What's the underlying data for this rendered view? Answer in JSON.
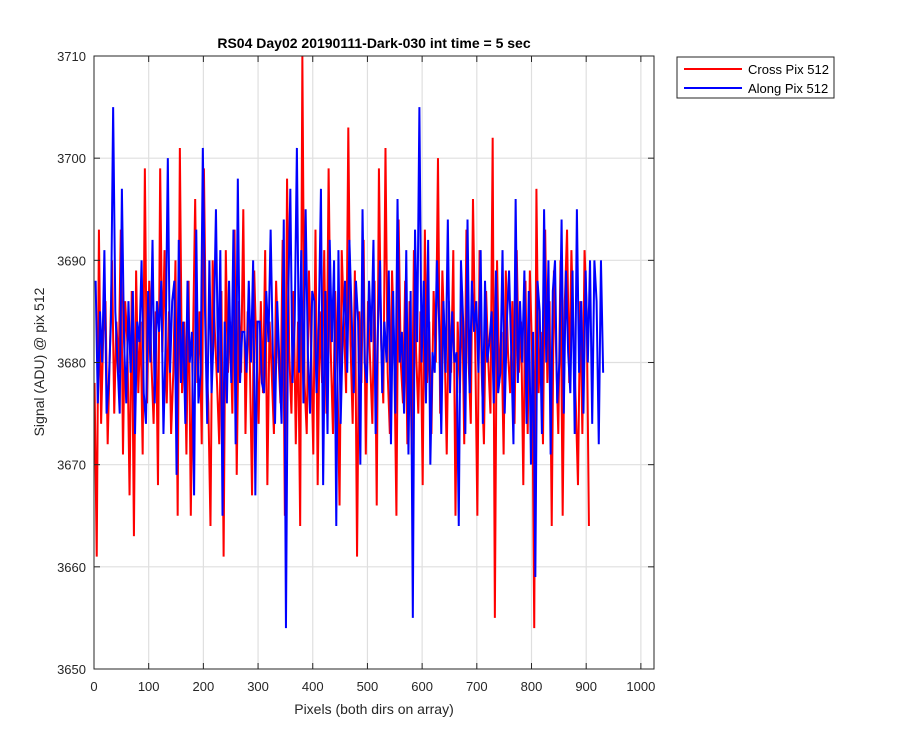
{
  "chart_data": {
    "type": "line",
    "title": "RS04 Day02 20190111-Dark-030 int time = 5 sec",
    "xlabel": "Pixels (both dirs on array)",
    "ylabel": "Signal (ADU) @ pix 512",
    "xlim": [
      0,
      1024
    ],
    "ylim": [
      3650,
      3710
    ],
    "xticks": [
      0,
      100,
      200,
      300,
      400,
      500,
      600,
      700,
      800,
      900,
      1000
    ],
    "yticks": [
      3650,
      3660,
      3670,
      3680,
      3690,
      3700,
      3710
    ],
    "grid": true,
    "legend_position": "top-right, outside plot",
    "series": [
      {
        "name": "Cross Pix 512",
        "color": "#ff0000",
        "x_start": 1,
        "x_step": 4,
        "values": [
          3678,
          3661,
          3693,
          3674,
          3683,
          3686,
          3672,
          3681,
          3690,
          3675,
          3684,
          3679,
          3693,
          3671,
          3686,
          3682,
          3667,
          3687,
          3663,
          3689,
          3677,
          3684,
          3671,
          3699,
          3676,
          3688,
          3680,
          3674,
          3685,
          3668,
          3699,
          3681,
          3691,
          3676,
          3685,
          3673,
          3679,
          3690,
          3665,
          3701,
          3677,
          3684,
          3671,
          3688,
          3665,
          3682,
          3696,
          3678,
          3685,
          3672,
          3699,
          3681,
          3676,
          3664,
          3690,
          3683,
          3678,
          3672,
          3687,
          3661,
          3691,
          3679,
          3684,
          3675,
          3693,
          3669,
          3686,
          3679,
          3695,
          3673,
          3685,
          3680,
          3667,
          3689,
          3681,
          3674,
          3686,
          3677,
          3691,
          3668,
          3684,
          3679,
          3673,
          3688,
          3681,
          3676,
          3692,
          3665,
          3698,
          3681,
          3675,
          3687,
          3672,
          3684,
          3664,
          3710,
          3678,
          3673,
          3689,
          3681,
          3671,
          3693,
          3668,
          3685,
          3678,
          3691,
          3675,
          3699,
          3681,
          3673,
          3687,
          3679,
          3666,
          3691,
          3684,
          3677,
          3703,
          3682,
          3674,
          3689,
          3661,
          3685,
          3678,
          3692,
          3671,
          3686,
          3680,
          3674,
          3688,
          3666,
          3699,
          3682,
          3676,
          3701,
          3679,
          3673,
          3689,
          3681,
          3665,
          3694,
          3680,
          3676,
          3688,
          3672,
          3686,
          3671,
          3691,
          3681,
          3675,
          3685,
          3668,
          3693,
          3678,
          3684,
          3673,
          3687,
          3680,
          3700,
          3675,
          3689,
          3682,
          3671,
          3686,
          3679,
          3691,
          3665,
          3684,
          3677,
          3687,
          3672,
          3693,
          3680,
          3674,
          3696,
          3682,
          3665,
          3691,
          3679,
          3672,
          3687,
          3680,
          3675,
          3702,
          3655,
          3690,
          3678,
          3683,
          3671,
          3689,
          3681,
          3677,
          3686,
          3674,
          3691,
          3679,
          3684,
          3668,
          3688,
          3673,
          3689,
          3681,
          3654,
          3697,
          3677,
          3683,
          3672,
          3693,
          3678,
          3686,
          3664,
          3689,
          3681,
          3673,
          3690,
          3665,
          3686,
          3693,
          3678,
          3691,
          3682,
          3676,
          3668,
          3686,
          3673,
          3691,
          3685,
          3664
        ]
      },
      {
        "name": "Along Pix 512",
        "color": "#0000ff",
        "x_start": 3,
        "x_step": 4,
        "values": [
          3688,
          3676,
          3685,
          3680,
          3691,
          3675,
          3678,
          3684,
          3705,
          3685,
          3680,
          3675,
          3697,
          3682,
          3676,
          3686,
          3679,
          3687,
          3673,
          3684,
          3682,
          3690,
          3677,
          3674,
          3687,
          3680,
          3692,
          3676,
          3686,
          3683,
          3688,
          3673,
          3682,
          3700,
          3679,
          3686,
          3688,
          3669,
          3692,
          3678,
          3684,
          3674,
          3688,
          3680,
          3683,
          3667,
          3693,
          3676,
          3679,
          3701,
          3685,
          3674,
          3690,
          3677,
          3683,
          3695,
          3679,
          3691,
          3665,
          3684,
          3676,
          3688,
          3678,
          3693,
          3672,
          3698,
          3678,
          3683,
          3683,
          3679,
          3688,
          3680,
          3690,
          3667,
          3684,
          3684,
          3678,
          3677,
          3687,
          3682,
          3693,
          3681,
          3674,
          3686,
          3680,
          3674,
          3694,
          3654,
          3686,
          3697,
          3678,
          3684,
          3701,
          3679,
          3691,
          3676,
          3695,
          3681,
          3675,
          3687,
          3686,
          3677,
          3684,
          3697,
          3668,
          3687,
          3673,
          3692,
          3682,
          3690,
          3664,
          3691,
          3674,
          3683,
          3688,
          3679,
          3692,
          3685,
          3677,
          3688,
          3684,
          3670,
          3695,
          3680,
          3678,
          3688,
          3682,
          3692,
          3673,
          3683,
          3690,
          3677,
          3684,
          3680,
          3689,
          3672,
          3687,
          3675,
          3696,
          3680,
          3683,
          3675,
          3691,
          3671,
          3687,
          3655,
          3693,
          3682,
          3705,
          3680,
          3688,
          3676,
          3692,
          3670,
          3681,
          3679,
          3690,
          3684,
          3673,
          3686,
          3679,
          3694,
          3677,
          3685,
          3680,
          3681,
          3664,
          3690,
          3684,
          3673,
          3694,
          3677,
          3688,
          3683,
          3686,
          3679,
          3691,
          3674,
          3688,
          3680,
          3682,
          3685,
          3676,
          3689,
          3677,
          3679,
          3691,
          3675,
          3684,
          3689,
          3681,
          3672,
          3696,
          3678,
          3686,
          3680,
          3689,
          3674,
          3687,
          3670,
          3683,
          3659,
          3688,
          3685,
          3673,
          3695,
          3680,
          3690,
          3671,
          3687,
          3690,
          3676,
          3680,
          3694,
          3675,
          3689,
          3681,
          3677,
          3689,
          3673,
          3695,
          3679,
          3686,
          3675,
          3689,
          3680,
          3690,
          3674,
          3690,
          3686,
          3672,
          3690,
          3679
        ]
      }
    ]
  }
}
